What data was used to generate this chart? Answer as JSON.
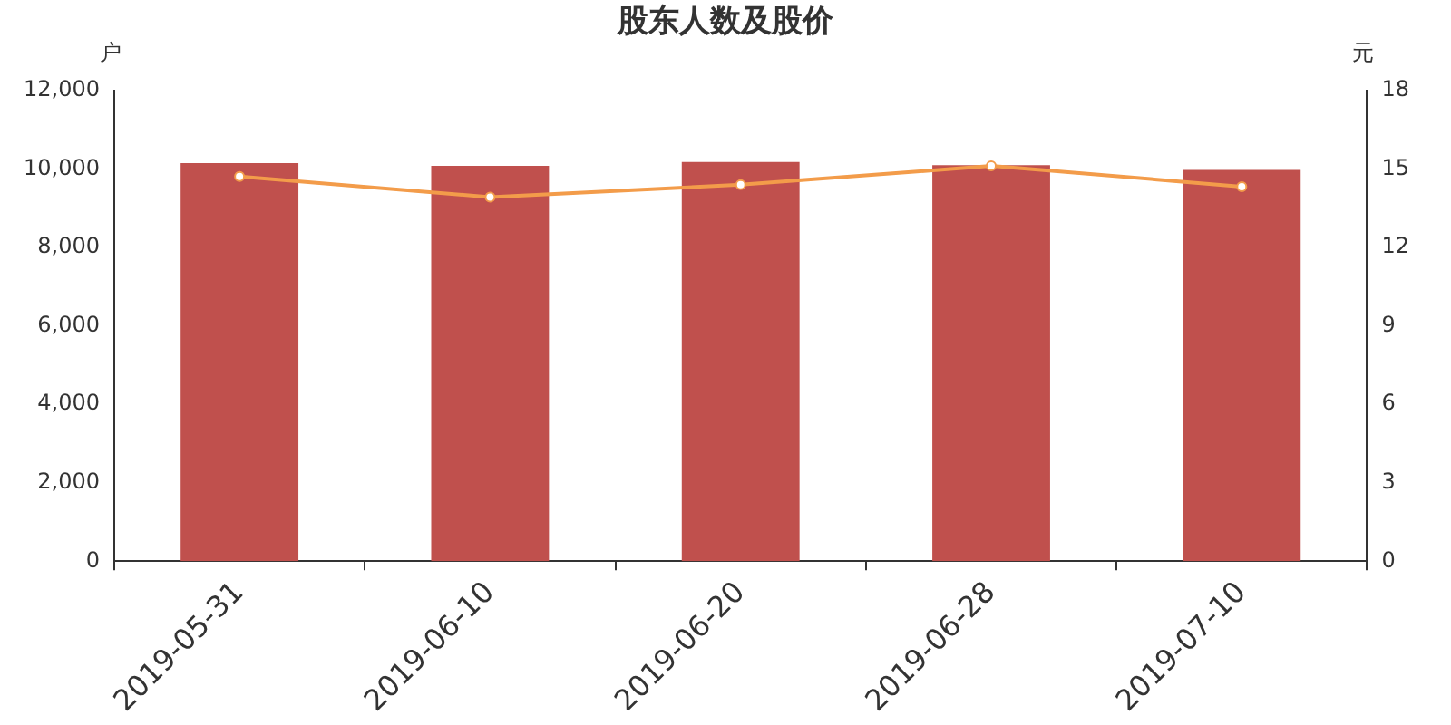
{
  "chart_data": {
    "type": "bar",
    "title": "股东人数及股价",
    "ylabel": "户",
    "y2label": "元",
    "categories": [
      "2019-05-31",
      "2019-06-10",
      "2019-06-20",
      "2019-06-28",
      "2019-07-10"
    ],
    "series": [
      {
        "color": "#c0504d",
        "values": [
          10150,
          10080,
          10180,
          10100,
          9980
        ]
      },
      {
        "type": "line",
        "axis": "y2",
        "color": "#f39c4a",
        "marker": "circle",
        "values": [
          14.72,
          13.93,
          14.4,
          15.12,
          14.33
        ]
      }
    ],
    "ylim": [
      0,
      12000
    ],
    "yticks": [
      {
        "value": 0,
        "label": "0"
      },
      {
        "value": 2000,
        "label": "2,000"
      },
      {
        "value": 4000,
        "label": "4,000"
      },
      {
        "value": 6000,
        "label": "6,000"
      },
      {
        "value": 8000,
        "label": "8,000"
      },
      {
        "value": 10000,
        "label": "10,000"
      },
      {
        "value": 12000,
        "label": "12,000"
      }
    ],
    "y2lim": [
      0,
      18
    ],
    "y2ticks": [
      0,
      3,
      6,
      9,
      12,
      15,
      18
    ],
    "grid": false,
    "legend": false
  }
}
